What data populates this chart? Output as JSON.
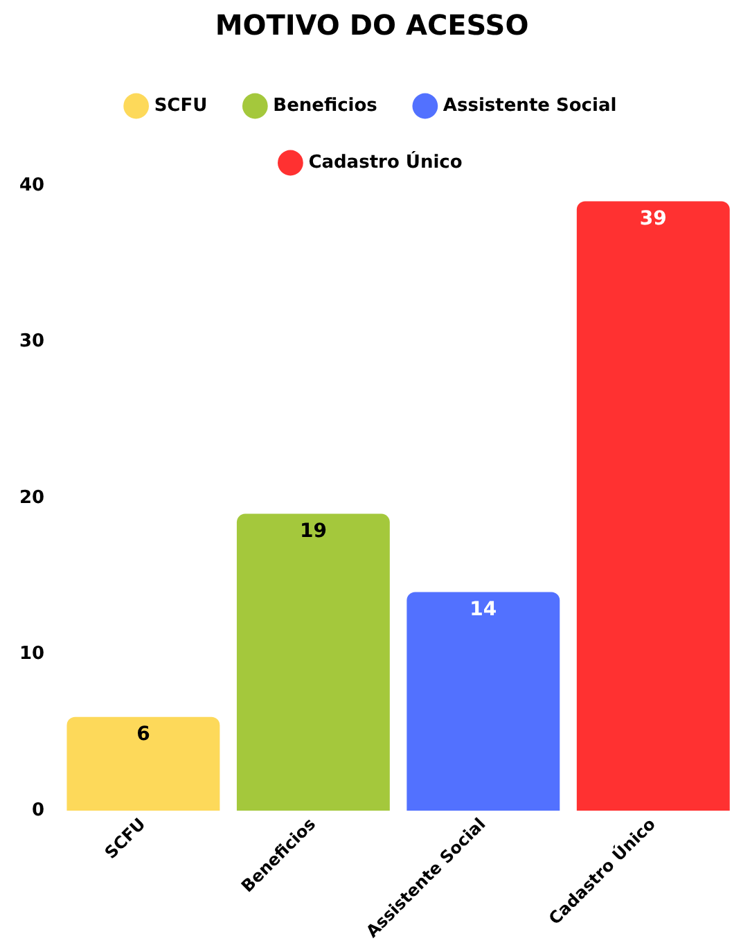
{
  "chart_data": {
    "type": "bar",
    "title": "MOTIVO DO ACESSO",
    "categories": [
      "SCFU",
      "Beneficios",
      "Assistente Social",
      "Cadastro Único"
    ],
    "series": [
      {
        "name": "SCFU",
        "color": "#fdd95a",
        "values": [
          6,
          null,
          null,
          null
        ]
      },
      {
        "name": "Beneficios",
        "color": "#a4c83c",
        "values": [
          null,
          19,
          null,
          null
        ]
      },
      {
        "name": "Assistente Social",
        "color": "#5271ff",
        "values": [
          null,
          null,
          14,
          null
        ]
      },
      {
        "name": "Cadastro Único",
        "color": "#ff3131",
        "values": [
          null,
          null,
          null,
          39
        ]
      }
    ],
    "ylim": [
      0,
      40
    ],
    "yticks": [
      0,
      10,
      20,
      30,
      40
    ],
    "grid": false,
    "legend": "top",
    "data_labels": true
  }
}
